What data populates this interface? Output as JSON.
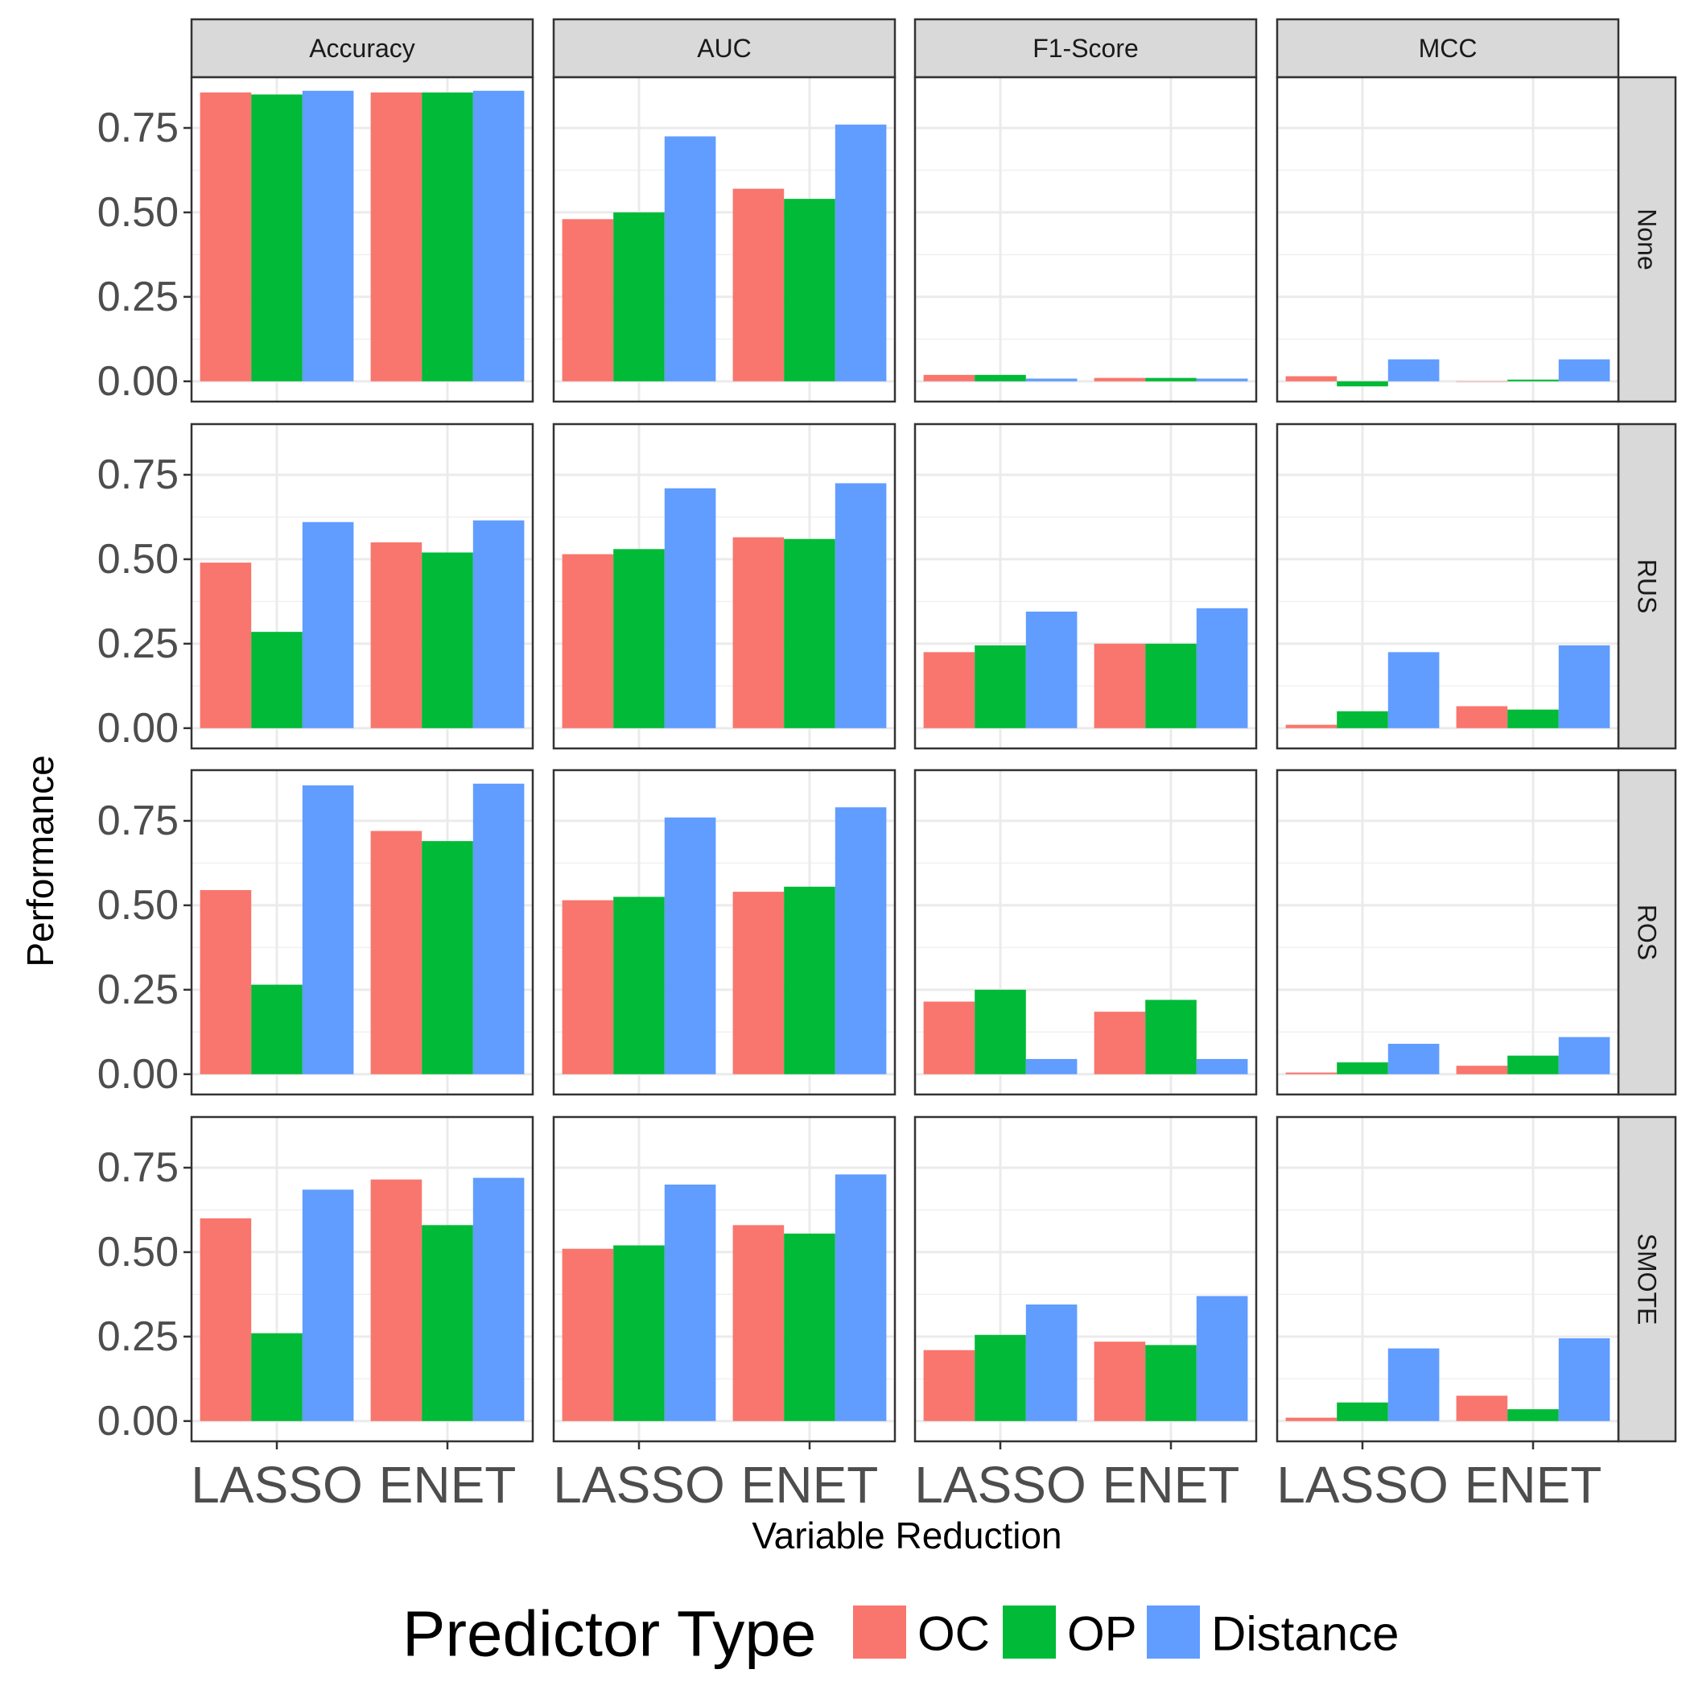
{
  "chart_data": {
    "type": "bar",
    "facet_columns": [
      "Accuracy",
      "AUC",
      "F1-Score",
      "MCC"
    ],
    "facet_rows": [
      "None",
      "RUS",
      "ROS",
      "SMOTE"
    ],
    "categories": [
      "LASSO",
      "ENET"
    ],
    "xlabel": "Variable Reduction",
    "ylabel": "Performance",
    "ylim": [
      -0.06,
      0.9
    ],
    "yticks": [
      "0.00",
      "0.25",
      "0.50",
      "0.75"
    ],
    "grid": true,
    "legend": {
      "title": "Predictor Type",
      "position": "bottom",
      "entries": [
        "OC",
        "OP",
        "Distance"
      ]
    },
    "colors": {
      "OC": "#F8766D",
      "OP": "#00BA38",
      "Distance": "#619CFF"
    },
    "series_names": [
      "OC",
      "OP",
      "Distance"
    ],
    "values": {
      "None": {
        "Accuracy": {
          "LASSO": [
            0.855,
            0.849,
            0.86
          ],
          "ENET": [
            0.855,
            0.855,
            0.86
          ]
        },
        "AUC": {
          "LASSO": [
            0.48,
            0.5,
            0.725
          ],
          "ENET": [
            0.57,
            0.54,
            0.76
          ]
        },
        "F1-Score": {
          "LASSO": [
            0.019,
            0.019,
            0.008
          ],
          "ENET": [
            0.01,
            0.01,
            0.008
          ]
        },
        "MCC": {
          "LASSO": [
            0.015,
            -0.015,
            0.065
          ],
          "ENET": [
            0.0,
            0.005,
            0.065
          ]
        }
      },
      "RUS": {
        "Accuracy": {
          "LASSO": [
            0.49,
            0.285,
            0.61
          ],
          "ENET": [
            0.55,
            0.52,
            0.615
          ]
        },
        "AUC": {
          "LASSO": [
            0.515,
            0.53,
            0.71
          ],
          "ENET": [
            0.565,
            0.56,
            0.725
          ]
        },
        "F1-Score": {
          "LASSO": [
            0.225,
            0.245,
            0.345
          ],
          "ENET": [
            0.25,
            0.25,
            0.355
          ]
        },
        "MCC": {
          "LASSO": [
            0.01,
            0.05,
            0.225
          ],
          "ENET": [
            0.065,
            0.055,
            0.245
          ]
        }
      },
      "ROS": {
        "Accuracy": {
          "LASSO": [
            0.545,
            0.265,
            0.855
          ],
          "ENET": [
            0.72,
            0.69,
            0.86
          ]
        },
        "AUC": {
          "LASSO": [
            0.515,
            0.525,
            0.76
          ],
          "ENET": [
            0.54,
            0.555,
            0.79
          ]
        },
        "F1-Score": {
          "LASSO": [
            0.215,
            0.25,
            0.045
          ],
          "ENET": [
            0.185,
            0.22,
            0.045
          ]
        },
        "MCC": {
          "LASSO": [
            0.005,
            0.035,
            0.09
          ],
          "ENET": [
            0.025,
            0.055,
            0.11
          ]
        }
      },
      "SMOTE": {
        "Accuracy": {
          "LASSO": [
            0.6,
            0.26,
            0.685
          ],
          "ENET": [
            0.715,
            0.58,
            0.72
          ]
        },
        "AUC": {
          "LASSO": [
            0.51,
            0.52,
            0.7
          ],
          "ENET": [
            0.58,
            0.555,
            0.73
          ]
        },
        "F1-Score": {
          "LASSO": [
            0.21,
            0.255,
            0.345
          ],
          "ENET": [
            0.235,
            0.225,
            0.37
          ]
        },
        "MCC": {
          "LASSO": [
            0.01,
            0.055,
            0.215
          ],
          "ENET": [
            0.075,
            0.035,
            0.245
          ]
        }
      }
    }
  }
}
